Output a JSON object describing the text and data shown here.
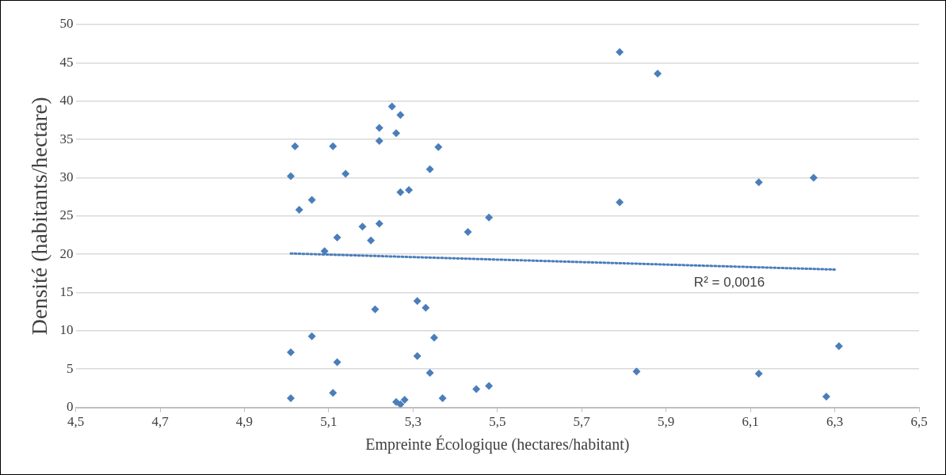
{
  "chart_data": {
    "type": "scatter",
    "xlabel": "Empreinte Écologique (hectares/habitant)",
    "ylabel": "Densité (habitants/hectare)",
    "xlim": [
      4.5,
      6.5
    ],
    "xticks": [
      {
        "value": 4.5,
        "label": "4,5"
      },
      {
        "value": 4.7,
        "label": "4,7"
      },
      {
        "value": 4.9,
        "label": "4,9"
      },
      {
        "value": 5.1,
        "label": "5,1"
      },
      {
        "value": 5.3,
        "label": "5,3"
      },
      {
        "value": 5.5,
        "label": "5,5"
      },
      {
        "value": 5.7,
        "label": "5,7"
      },
      {
        "value": 5.9,
        "label": "5,9"
      },
      {
        "value": 6.1,
        "label": "6,1"
      },
      {
        "value": 6.3,
        "label": "6,3"
      },
      {
        "value": 6.5,
        "label": "6,5"
      }
    ],
    "ylim": [
      0,
      50
    ],
    "yticks": [
      0,
      5,
      10,
      15,
      20,
      25,
      30,
      35,
      40,
      45,
      50
    ],
    "grid": "y",
    "legend": false,
    "marker": "diamond",
    "series": [
      {
        "color": "#4a7ebb",
        "x": [
          5.01,
          5.01,
          5.01,
          5.02,
          5.03,
          5.06,
          5.06,
          5.09,
          5.11,
          5.11,
          5.12,
          5.12,
          5.14,
          5.18,
          5.2,
          5.21,
          5.22,
          5.22,
          5.22,
          5.25,
          5.26,
          5.26,
          5.27,
          5.27,
          5.27,
          5.28,
          5.29,
          5.31,
          5.31,
          5.33,
          5.34,
          5.34,
          5.35,
          5.36,
          5.37,
          5.43,
          5.45,
          5.48,
          5.48,
          5.79,
          5.79,
          5.83,
          5.88,
          6.12,
          6.12,
          6.25,
          6.28,
          6.31
        ],
        "values": [
          1.2,
          7.2,
          30.2,
          34.1,
          25.8,
          9.3,
          27.1,
          20.4,
          1.9,
          34.1,
          5.9,
          22.2,
          30.5,
          23.6,
          21.8,
          12.8,
          36.5,
          34.8,
          24.0,
          39.3,
          35.8,
          0.7,
          38.2,
          28.1,
          0.4,
          1.0,
          28.4,
          13.9,
          6.7,
          13.0,
          31.1,
          4.5,
          9.1,
          34.0,
          1.2,
          22.9,
          2.4,
          2.8,
          24.8,
          46.4,
          26.8,
          4.7,
          43.6,
          29.4,
          4.4,
          30.0,
          1.4,
          8.0
        ]
      },
      {
        "type": "line",
        "color": "#4a7ebb",
        "line_style": "dotted",
        "marker": "none",
        "x": [
          5.01,
          6.3
        ],
        "values": [
          20.1,
          18.0
        ]
      }
    ],
    "annotations": [
      "R² = 0,0016"
    ]
  }
}
